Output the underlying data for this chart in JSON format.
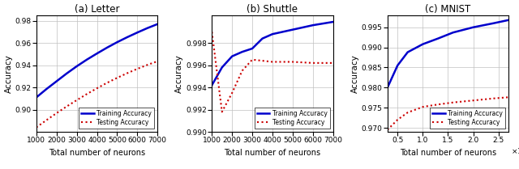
{
  "letter": {
    "title": "(a) Letter",
    "train_x": [
      1000,
      1500,
      2000,
      2500,
      3000,
      3500,
      4000,
      4500,
      5000,
      5500,
      6000,
      6500,
      7000
    ],
    "train_y": [
      0.911,
      0.9185,
      0.9255,
      0.9325,
      0.939,
      0.945,
      0.9505,
      0.9558,
      0.9607,
      0.9652,
      0.9694,
      0.9734,
      0.977
    ],
    "test_x": [
      1000,
      1500,
      2000,
      2500,
      3000,
      3500,
      4000,
      4500,
      5000,
      5500,
      6000,
      6500,
      7000
    ],
    "test_y": [
      0.884,
      0.8905,
      0.8968,
      0.9028,
      0.9085,
      0.914,
      0.9192,
      0.9241,
      0.9286,
      0.9328,
      0.9367,
      0.9403,
      0.9435
    ],
    "xlim": [
      1000,
      7000
    ],
    "ylim": [
      0.88,
      0.985
    ],
    "yticks": [
      0.9,
      0.92,
      0.94,
      0.96,
      0.98
    ],
    "xticks": [
      1000,
      2000,
      3000,
      4000,
      5000,
      6000,
      7000
    ],
    "xlabel": "Total number of neurons"
  },
  "shuttle": {
    "title": "(b) Shuttle",
    "train_x": [
      1000,
      1500,
      2000,
      2500,
      3000,
      3500,
      4000,
      5000,
      6000,
      7000
    ],
    "train_y": [
      0.9942,
      0.9958,
      0.9968,
      0.9972,
      0.9975,
      0.9984,
      0.9988,
      0.9992,
      0.9996,
      0.9999
    ],
    "test_x": [
      1000,
      1500,
      2000,
      2500,
      3000,
      3500,
      4000,
      5000,
      6000,
      7000
    ],
    "test_y": [
      0.999,
      0.9918,
      0.9935,
      0.9955,
      0.9965,
      0.9964,
      0.9963,
      0.9963,
      0.9962,
      0.9962
    ],
    "xlim": [
      1000,
      7000
    ],
    "ylim": [
      0.99,
      1.0005
    ],
    "yticks": [
      0.99,
      0.992,
      0.994,
      0.996,
      0.998
    ],
    "xticks": [
      1000,
      2000,
      3000,
      4000,
      5000,
      6000,
      7000
    ],
    "xlabel": "Total number of neurons"
  },
  "mnist": {
    "title": "(c) MNIST",
    "train_x": [
      3000,
      5000,
      7000,
      10000,
      13000,
      16000,
      20000,
      24000,
      27000
    ],
    "train_y": [
      0.98,
      0.9855,
      0.9888,
      0.9908,
      0.9922,
      0.9937,
      0.995,
      0.996,
      0.9968
    ],
    "test_x": [
      3000,
      5000,
      7000,
      10000,
      13000,
      16000,
      20000,
      24000,
      27000
    ],
    "test_y": [
      0.9695,
      0.972,
      0.9738,
      0.9752,
      0.9758,
      0.9763,
      0.9768,
      0.9773,
      0.9776
    ],
    "xlim": [
      3000,
      27000
    ],
    "ylim": [
      0.969,
      0.998
    ],
    "yticks": [
      0.97,
      0.975,
      0.98,
      0.985,
      0.99,
      0.995
    ],
    "xticks": [
      5000,
      10000,
      15000,
      20000,
      25000
    ],
    "xlabel": "Total number of neurons"
  },
  "train_color": "#0000CC",
  "test_color": "#CC0000",
  "ylabel": "Accuracy",
  "legend_train": "Training Accuracy",
  "legend_test": "Testing Accuracy"
}
